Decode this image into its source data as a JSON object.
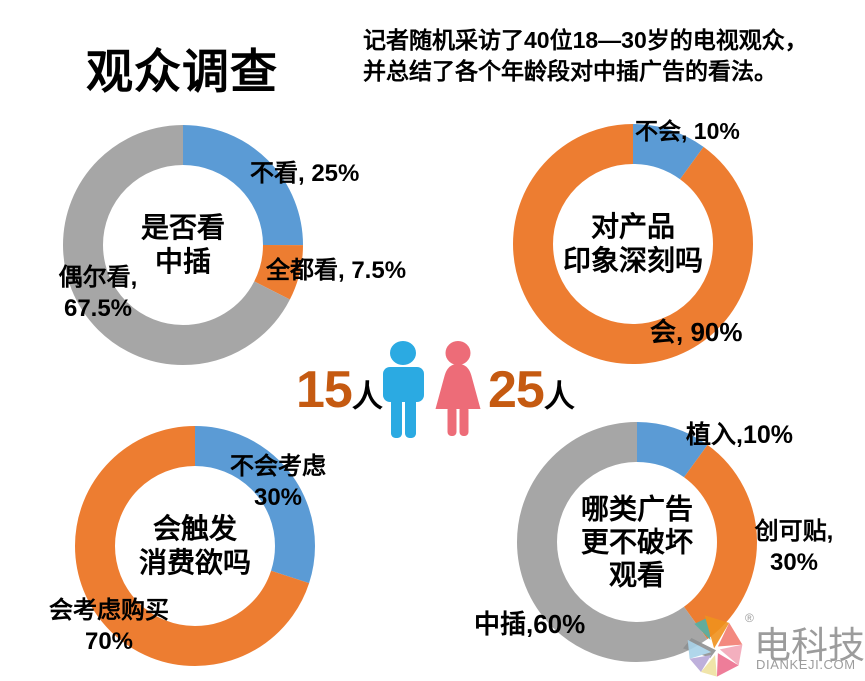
{
  "header": {
    "title": "观众调查",
    "intro": "记者随机采访了40位18—30岁的电视观众，\n并总结了各个年龄段对中插广告的看法。"
  },
  "survey_sample": {
    "male_count": "15",
    "male_unit": "人",
    "female_count": "25",
    "female_unit": "人",
    "total_interviewed": 40,
    "age_range": "18—30"
  },
  "logo": {
    "registered": "®",
    "brand": "电科技",
    "domain": "DIANKEJI.COM"
  },
  "colors": {
    "blue": "#5B9BD5",
    "orange": "#ED7D31",
    "gray": "#A6A6A6",
    "male": "#2BAAE2",
    "female": "#ED6C78",
    "count": "#C55A11"
  },
  "chart_data": [
    {
      "type": "pie",
      "subtype": "donut",
      "title": "是否看中插",
      "center_text": "是否看\n中插",
      "start_angle_deg": 0,
      "segments": [
        {
          "label": "不看",
          "value": 25,
          "color": "blue",
          "display": "不看, 25%"
        },
        {
          "label": "全都看",
          "value": 7.5,
          "color": "orange",
          "display": "全都看, 7.5%"
        },
        {
          "label": "偶尔看",
          "value": 67.5,
          "color": "gray",
          "display": "偶尔看,\n67.5%"
        }
      ]
    },
    {
      "type": "pie",
      "subtype": "donut",
      "title": "对产品印象深刻吗",
      "center_text": "对产品\n印象深刻吗",
      "start_angle_deg": 0,
      "segments": [
        {
          "label": "不会",
          "value": 10,
          "color": "blue",
          "display": "不会, 10%"
        },
        {
          "label": "会",
          "value": 90,
          "color": "orange",
          "display": "会, 90%"
        }
      ]
    },
    {
      "type": "pie",
      "subtype": "donut",
      "title": "会触发消费欲吗",
      "center_text": "会触发\n消费欲吗",
      "start_angle_deg": 0,
      "segments": [
        {
          "label": "不会考虑",
          "value": 30,
          "color": "blue",
          "display": "不会考虑\n30%"
        },
        {
          "label": "会考虑购买",
          "value": 70,
          "color": "orange",
          "display": "会考虑购买\n70%"
        }
      ]
    },
    {
      "type": "pie",
      "subtype": "donut",
      "title": "哪类广告更不破坏观看",
      "center_text": "哪类广告\n更不破坏\n观看",
      "start_angle_deg": 0,
      "segments": [
        {
          "label": "植入",
          "value": 10,
          "color": "blue",
          "display": "植入,10%"
        },
        {
          "label": "创可贴",
          "value": 30,
          "color": "orange",
          "display": "创可贴,\n30%"
        },
        {
          "label": "中插",
          "value": 60,
          "color": "gray",
          "display": "中插,60%"
        }
      ]
    }
  ]
}
